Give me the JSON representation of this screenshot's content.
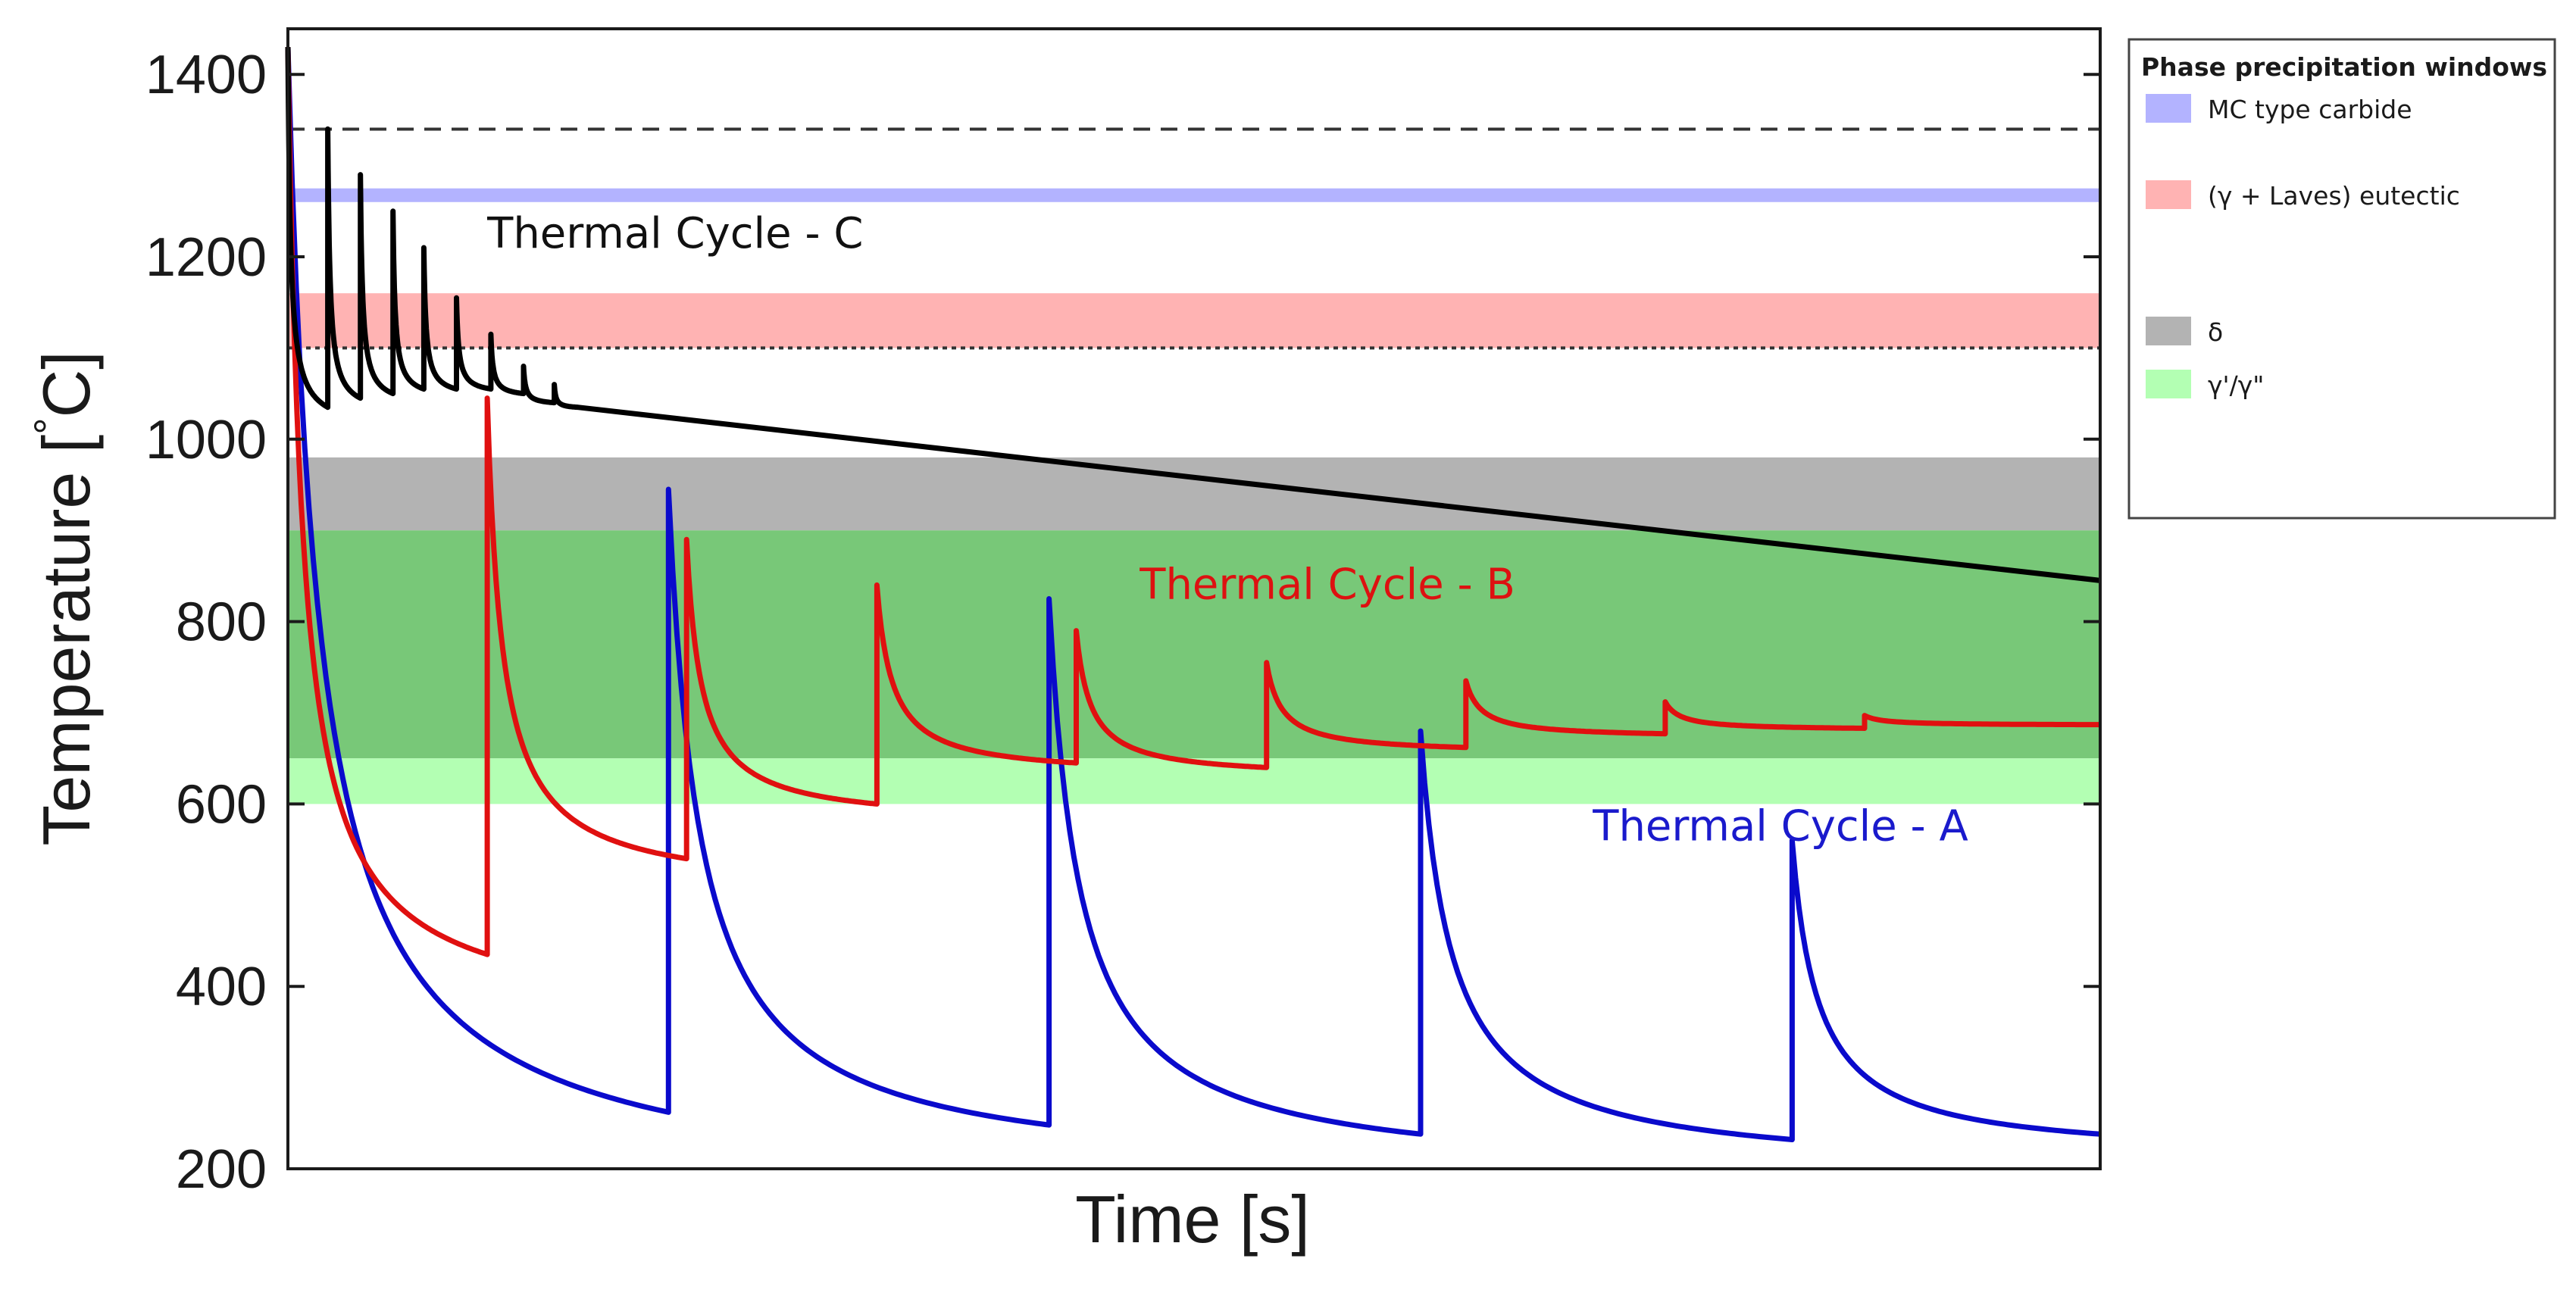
{
  "chart_data": {
    "type": "line",
    "title": "",
    "xlabel": "Time [s]",
    "ylabel": "Temperature [ °C]",
    "ylabel_parts": {
      "text": "Temperature [",
      "deg": "°",
      "unit": "C]"
    },
    "xlim": [
      0,
      100
    ],
    "ylim": [
      200,
      1450
    ],
    "yticks": [
      200,
      400,
      600,
      800,
      1000,
      1200,
      1400
    ],
    "xticks": [],
    "legend": {
      "title": "Phase precipitation windows",
      "placement": "right",
      "entries": [
        {
          "label": "MC type carbide",
          "color": "#b3b3ff"
        },
        {
          "label": "(γ  + Laves) eutectic",
          "color": "#ffb3b3"
        },
        {
          "label": "δ",
          "color": "#b3b3b3"
        },
        {
          "label": "γ'/γ\"",
          "color": "#b3ffb3"
        }
      ]
    },
    "bands": [
      {
        "name": "MC type carbide",
        "y0": 1260,
        "y1": 1275,
        "color": "#b3b3ff"
      },
      {
        "name": "(γ + Laves) eutectic",
        "y0": 1100,
        "y1": 1160,
        "color": "#ffb3b3"
      },
      {
        "name": "δ",
        "y0": 900,
        "y1": 980,
        "color": "#b3b3b3"
      },
      {
        "name": "γ'/γ\" dark",
        "y0": 650,
        "y1": 900,
        "color": "#78c878"
      },
      {
        "name": "γ'/γ\" light",
        "y0": 600,
        "y1": 650,
        "color": "#b3ffb3"
      }
    ],
    "reference_lines": [
      {
        "y": 1340,
        "style": "dashed",
        "color": "#333333"
      },
      {
        "y": 1100,
        "style": "dotted",
        "color": "#333333"
      }
    ],
    "annotations": [
      {
        "text": "Thermal Cycle - C",
        "x": 11,
        "y": 1210,
        "color": "#111111"
      },
      {
        "text": "Thermal Cycle - B",
        "x": 47,
        "y": 825,
        "color": "#dd1111"
      },
      {
        "text": "Thermal Cycle - A",
        "x": 72,
        "y": 560,
        "color": "#1a1acc"
      }
    ],
    "series": [
      {
        "name": "Thermal Cycle - A",
        "color": "#0a0acc",
        "start": {
          "x": 0,
          "y": 1430
        },
        "cycles": [
          {
            "x0": 0,
            "x1": 21,
            "peak": 1430,
            "end": 262,
            "rate": 2.0
          },
          {
            "x0": 21,
            "x1": 42,
            "peak": 945,
            "end": 248,
            "rate": 2.0
          },
          {
            "x0": 42,
            "x1": 62.5,
            "peak": 825,
            "end": 238,
            "rate": 2.0
          },
          {
            "x0": 62.5,
            "x1": 83,
            "peak": 680,
            "end": 232,
            "rate": 2.0
          },
          {
            "x0": 83,
            "x1": 100,
            "peak": 560,
            "end": 238,
            "rate": 2.0
          }
        ]
      },
      {
        "name": "Thermal Cycle - B",
        "color": "#e01010",
        "start": {
          "x": 0,
          "y": 1430
        },
        "cycles": [
          {
            "x0": 0,
            "x1": 11,
            "peak": 1430,
            "end": 435,
            "rate": 2.2
          },
          {
            "x0": 11,
            "x1": 22,
            "peak": 1045,
            "end": 540,
            "rate": 2.2
          },
          {
            "x0": 22,
            "x1": 32.5,
            "peak": 890,
            "end": 600,
            "rate": 2.2
          },
          {
            "x0": 32.5,
            "x1": 43.5,
            "peak": 840,
            "end": 645,
            "rate": 2.2
          },
          {
            "x0": 43.5,
            "x1": 54,
            "peak": 790,
            "end": 640,
            "rate": 2.2
          },
          {
            "x0": 54,
            "x1": 65,
            "peak": 755,
            "end": 662,
            "rate": 2.2
          },
          {
            "x0": 65,
            "x1": 76,
            "peak": 735,
            "end": 677,
            "rate": 2.2
          },
          {
            "x0": 76,
            "x1": 87,
            "peak": 712,
            "end": 683,
            "rate": 2.2
          },
          {
            "x0": 87,
            "x1": 100,
            "peak": 697,
            "end": 687,
            "rate": 2.2
          }
        ]
      },
      {
        "name": "Thermal Cycle - C",
        "color": "#000000",
        "start": {
          "x": 0,
          "y": 1430
        },
        "cycles": [
          {
            "x0": 0,
            "x1": 2.2,
            "peak": 1430,
            "end": 1035,
            "rate": 2.5
          },
          {
            "x0": 2.2,
            "x1": 4.0,
            "peak": 1340,
            "end": 1045,
            "rate": 2.5
          },
          {
            "x0": 4.0,
            "x1": 5.8,
            "peak": 1290,
            "end": 1050,
            "rate": 2.5
          },
          {
            "x0": 5.8,
            "x1": 7.5,
            "peak": 1250,
            "end": 1055,
            "rate": 2.5
          },
          {
            "x0": 7.5,
            "x1": 9.3,
            "peak": 1210,
            "end": 1055,
            "rate": 2.5
          },
          {
            "x0": 9.3,
            "x1": 11.2,
            "peak": 1155,
            "end": 1055,
            "rate": 2.5
          },
          {
            "x0": 11.2,
            "x1": 13.0,
            "peak": 1115,
            "end": 1050,
            "rate": 2.5
          },
          {
            "x0": 13.0,
            "x1": 14.7,
            "peak": 1080,
            "end": 1040,
            "rate": 2.5
          },
          {
            "x0": 14.7,
            "x1": 16.0,
            "peak": 1060,
            "end": 1035,
            "rate": 2.5
          }
        ],
        "tail": {
          "x0": 16.0,
          "y0": 1035,
          "x1": 100,
          "y1": 845
        }
      }
    ]
  }
}
